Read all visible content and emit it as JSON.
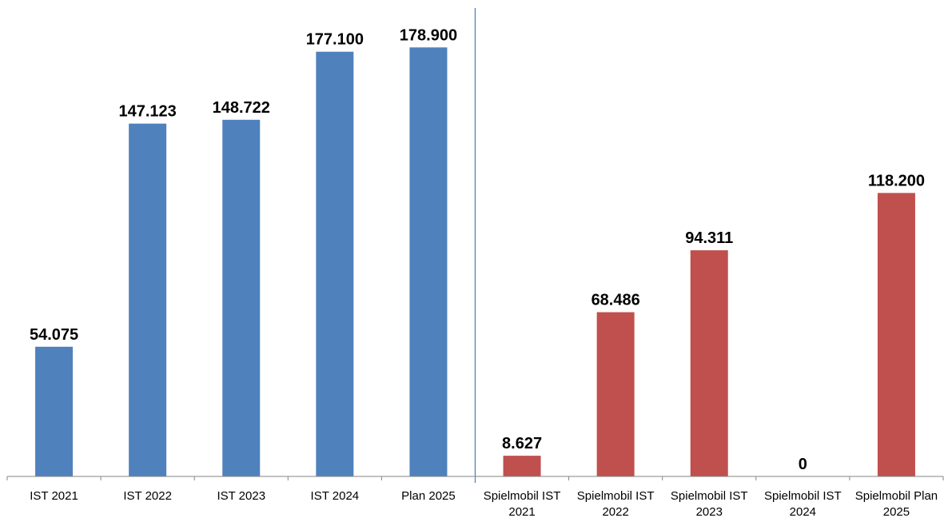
{
  "chart_data": {
    "type": "bar",
    "title": "",
    "xlabel": "",
    "ylabel": "",
    "ylim": [
      0,
      190000
    ],
    "grid": false,
    "legend": "none",
    "categories": [
      [
        "IST 2021"
      ],
      [
        "IST 2022"
      ],
      [
        "IST 2023"
      ],
      [
        "IST 2024"
      ],
      [
        "Plan 2025"
      ],
      [
        "Spielmobil IST",
        "2021"
      ],
      [
        "Spielmobil IST",
        "2022"
      ],
      [
        "Spielmobil IST",
        "2023"
      ],
      [
        "Spielmobil IST",
        "2024"
      ],
      [
        "Spielmobil Plan",
        "2025"
      ]
    ],
    "values": [
      54075,
      147123,
      148722,
      177100,
      178900,
      8627,
      68486,
      94311,
      0,
      118200
    ],
    "value_labels": [
      "54.075",
      "147.123",
      "148.722",
      "177.100",
      "178.900",
      "8.627",
      "68.486",
      "94.311",
      "0",
      "118.200"
    ],
    "bar_colors": [
      "#4F81BD",
      "#4F81BD",
      "#4F81BD",
      "#4F81BD",
      "#4F81BD",
      "#C0504D",
      "#C0504D",
      "#C0504D",
      "#C0504D",
      "#C0504D"
    ],
    "separator_after_index": 4,
    "separator_color": "#4F81BD",
    "axis_color": "#868686"
  }
}
